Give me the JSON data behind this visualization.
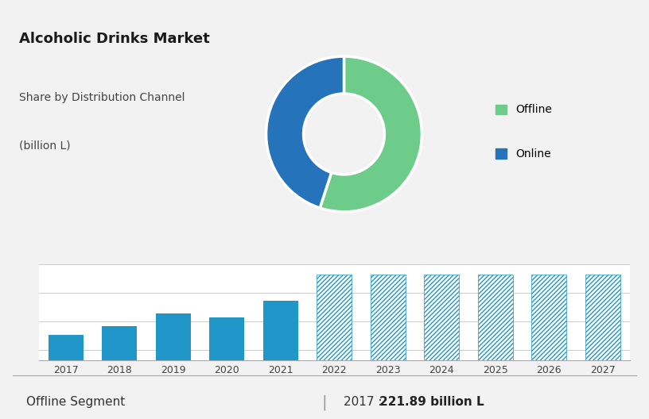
{
  "title": "Alcoholic Drinks Market",
  "subtitle_line1": "Share by Distribution Channel",
  "subtitle_line2": "(billion L)",
  "top_bg_color": "#c5ccd8",
  "bottom_bg_color": "#f2f2f2",
  "white_bg": "#ffffff",
  "bar_years": [
    2017,
    2018,
    2019,
    2020,
    2021
  ],
  "forecast_years": [
    2022,
    2023,
    2024,
    2025,
    2026,
    2027
  ],
  "bar_values": [
    221.89,
    226.0,
    232.0,
    230.0,
    238.0
  ],
  "forecast_values": [
    250.0,
    250.0,
    250.0,
    250.0,
    250.0,
    250.0
  ],
  "bar_color": "#2196c8",
  "forecast_hatch_color": "#2196c8",
  "donut_offline": 55,
  "donut_online": 45,
  "offline_color": "#6dcc8a",
  "online_color": "#2473bb",
  "footer_left": "Offline Segment",
  "footer_sep": "|",
  "footer_year": "2017 : ",
  "footer_value": "221.89 billion L",
  "legend_labels": [
    "Offline",
    "Online"
  ],
  "ylim_min": 210,
  "ylim_max": 255,
  "grid_color": "#cccccc",
  "spine_color": "#aaaaaa"
}
